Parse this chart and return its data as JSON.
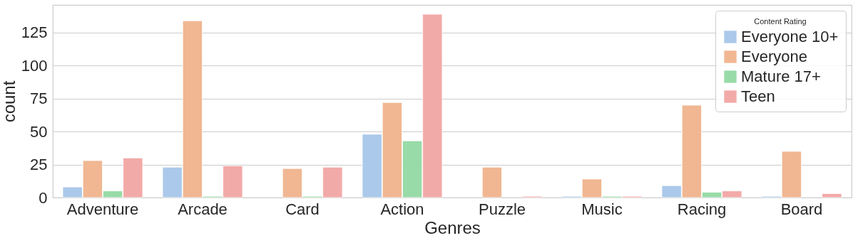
{
  "chart_data": {
    "type": "bar",
    "xlabel": "Genres",
    "ylabel": "count",
    "legend_title": "Content Rating",
    "categories": [
      "Adventure",
      "Arcade",
      "Card",
      "Action",
      "Puzzle",
      "Music",
      "Racing",
      "Board"
    ],
    "series": [
      {
        "name": "Everyone 10+",
        "color": "#abc9ea",
        "values": [
          8,
          23,
          null,
          48,
          null,
          1,
          9,
          1
        ]
      },
      {
        "name": "Everyone",
        "color": "#f0b792",
        "values": [
          28,
          134,
          22,
          72,
          23,
          14,
          70,
          35
        ]
      },
      {
        "name": "Mature 17+",
        "color": "#98dba8",
        "values": [
          5,
          1,
          1,
          43,
          null,
          1,
          4,
          null
        ]
      },
      {
        "name": "Teen",
        "color": "#f2aaa8",
        "values": [
          30,
          24,
          23,
          139,
          1,
          1,
          5,
          3
        ]
      }
    ],
    "ylim": [
      0,
      146
    ],
    "yticks": [
      0,
      25,
      50,
      75,
      100,
      125
    ],
    "grid": "y",
    "legend": "top right"
  }
}
